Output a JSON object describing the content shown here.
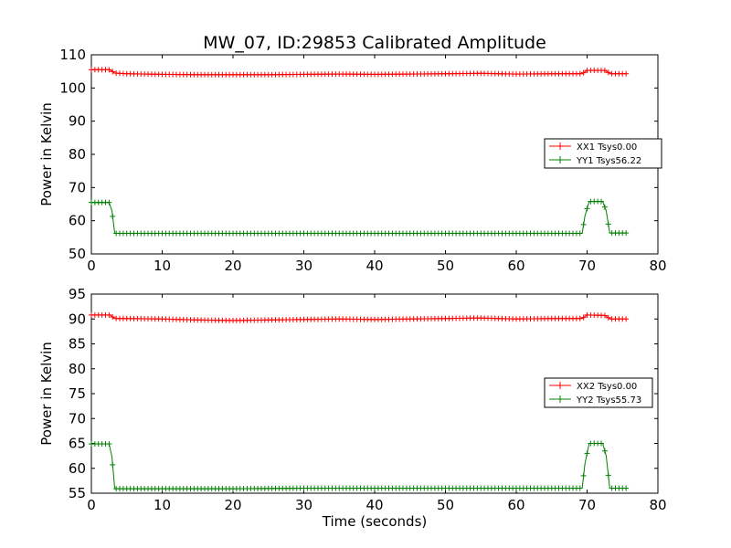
{
  "chart_data": [
    {
      "type": "line",
      "title": "MW_07, ID:29853 Calibrated Amplitude",
      "xlabel": "",
      "ylabel": "Power in Kelvin",
      "xlim": [
        0,
        80
      ],
      "ylim": [
        50,
        110
      ],
      "xticks": [
        "0",
        "10",
        "20",
        "30",
        "40",
        "50",
        "60",
        "70",
        "80"
      ],
      "yticks": [
        "50",
        "60",
        "70",
        "80",
        "90",
        "100",
        "110"
      ],
      "legend_position": "center-right",
      "series": [
        {
          "name": "XX1 Tsys0.00",
          "color": "#ff0000",
          "points": [
            [
              0,
              105.5
            ],
            [
              2.6,
              105.5
            ],
            [
              3.3,
              104.5
            ],
            [
              5,
              104.3
            ],
            [
              10,
              104.1
            ],
            [
              15,
              104.0
            ],
            [
              20,
              104.0
            ],
            [
              25,
              104.0
            ],
            [
              30,
              104.1
            ],
            [
              35,
              104.2
            ],
            [
              40,
              104.1
            ],
            [
              45,
              104.2
            ],
            [
              50,
              104.3
            ],
            [
              55,
              104.4
            ],
            [
              60,
              104.2
            ],
            [
              65,
              104.3
            ],
            [
              69.3,
              104.3
            ],
            [
              70,
              105.3
            ],
            [
              72.5,
              105.3
            ],
            [
              73.3,
              104.3
            ],
            [
              75.5,
              104.3
            ]
          ]
        },
        {
          "name": "YY1 Tsys56.22",
          "color": "#008000",
          "points": [
            [
              0,
              65.5
            ],
            [
              2.5,
              65.5
            ],
            [
              2.9,
              63.0
            ],
            [
              3.3,
              56.2
            ],
            [
              10,
              56.2
            ],
            [
              20,
              56.2
            ],
            [
              25,
              56.2
            ],
            [
              30,
              56.2
            ],
            [
              40,
              56.2
            ],
            [
              50,
              56.2
            ],
            [
              60,
              56.2
            ],
            [
              69.3,
              56.2
            ],
            [
              69.7,
              61.5
            ],
            [
              70.3,
              65.8
            ],
            [
              72.2,
              65.8
            ],
            [
              72.7,
              63.0
            ],
            [
              73.2,
              56.3
            ],
            [
              75.5,
              56.3
            ]
          ]
        }
      ]
    },
    {
      "type": "line",
      "title": "",
      "xlabel": "Time (seconds)",
      "ylabel": "Power in Kelvin",
      "xlim": [
        0,
        80
      ],
      "ylim": [
        55,
        95
      ],
      "xticks": [
        "0",
        "10",
        "20",
        "30",
        "40",
        "50",
        "60",
        "70",
        "80"
      ],
      "yticks": [
        "55",
        "60",
        "65",
        "70",
        "75",
        "80",
        "85",
        "90",
        "95"
      ],
      "legend_position": "center-right",
      "series": [
        {
          "name": "XX2 Tsys0.00",
          "color": "#ff0000",
          "points": [
            [
              0,
              90.8
            ],
            [
              2.6,
              90.8
            ],
            [
              3.3,
              90.1
            ],
            [
              5,
              90.1
            ],
            [
              10,
              90.0
            ],
            [
              15,
              89.8
            ],
            [
              20,
              89.7
            ],
            [
              25,
              89.8
            ],
            [
              30,
              89.9
            ],
            [
              35,
              90.0
            ],
            [
              40,
              89.9
            ],
            [
              45,
              90.0
            ],
            [
              50,
              90.1
            ],
            [
              55,
              90.2
            ],
            [
              60,
              90.0
            ],
            [
              65,
              90.1
            ],
            [
              69.3,
              90.1
            ],
            [
              70,
              90.8
            ],
            [
              72.5,
              90.7
            ],
            [
              73.3,
              90.0
            ],
            [
              75.5,
              90.0
            ]
          ]
        },
        {
          "name": "YY2 Tsys55.73",
          "color": "#008000",
          "points": [
            [
              0,
              64.9
            ],
            [
              2.5,
              64.9
            ],
            [
              2.9,
              62.3
            ],
            [
              3.3,
              55.9
            ],
            [
              10,
              55.9
            ],
            [
              20,
              55.9
            ],
            [
              30,
              56.0
            ],
            [
              40,
              56.0
            ],
            [
              50,
              56.0
            ],
            [
              60,
              56.0
            ],
            [
              69.3,
              56.0
            ],
            [
              69.7,
              61.0
            ],
            [
              70.3,
              65.0
            ],
            [
              72.2,
              65.0
            ],
            [
              72.7,
              62.5
            ],
            [
              73.2,
              56.0
            ],
            [
              75.5,
              56.0
            ]
          ]
        }
      ]
    }
  ]
}
